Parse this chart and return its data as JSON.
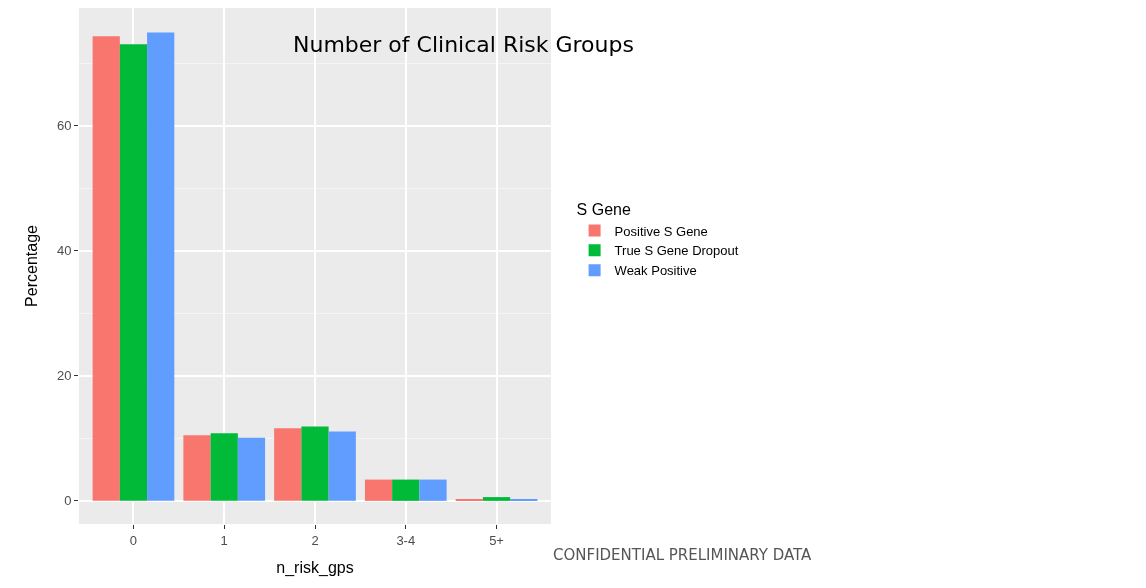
{
  "chart_data": {
    "type": "bar",
    "title": "Number of Clinical Risk Groups",
    "xlabel": "n_risk_gps",
    "ylabel": "Percentage",
    "legend_title": "S Gene",
    "categories": [
      "0",
      "1",
      "2",
      "3-4",
      "5+"
    ],
    "series": [
      {
        "name": "Positive S Gene",
        "color": "#f8766d",
        "values": [
          74.3,
          10.5,
          11.6,
          3.4,
          0.3
        ]
      },
      {
        "name": "True S Gene Dropout",
        "color": "#00ba38",
        "values": [
          73.0,
          10.8,
          11.9,
          3.4,
          0.6
        ]
      },
      {
        "name": "Weak Positive",
        "color": "#619cff",
        "values": [
          74.9,
          10.1,
          11.1,
          3.4,
          0.3
        ]
      }
    ],
    "ylim": [
      -3.7,
      78.8
    ],
    "yticks": [
      0,
      20,
      40,
      60
    ],
    "grid": true,
    "legend": "right",
    "annotations": [
      "CONFIDENTIAL PRELIMINARY DATA"
    ]
  }
}
